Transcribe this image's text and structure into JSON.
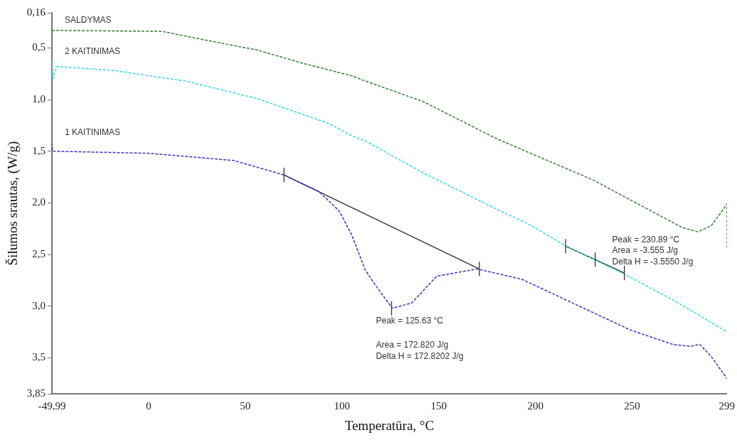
{
  "chart_data": {
    "type": "line",
    "xlabel": "Temperatūra, °C",
    "ylabel": "Šilumos srautas, (W/g)",
    "xlim": [
      -49.99,
      299
    ],
    "ylim": [
      3.85,
      0.16
    ],
    "xticks": [
      {
        "value": -49.99,
        "label": "-49,99"
      },
      0,
      50,
      100,
      150,
      200,
      250,
      299
    ],
    "yticks": [
      {
        "value": 0.16,
        "label": "0,16"
      },
      {
        "value": 0.5,
        "label": "0,5"
      },
      {
        "value": 1.0,
        "label": "1,0"
      },
      {
        "value": 1.5,
        "label": "1,5"
      },
      {
        "value": 2.0,
        "label": "2,0"
      },
      {
        "value": 2.5,
        "label": "2,5"
      },
      {
        "value": 3.0,
        "label": "3,0"
      },
      {
        "value": 3.5,
        "label": "3,5"
      },
      {
        "value": 3.85,
        "label": "3,85"
      }
    ],
    "grid": false,
    "legend": false,
    "line_style": "dashed",
    "marker": "none",
    "series": [
      {
        "name": "SALDYMAS",
        "color": "#3b7d3b",
        "x": [
          -49.99,
          7,
          31,
          56,
          80,
          105,
          112,
          142,
          180,
          230,
          268,
          276,
          284,
          291,
          296.5,
          299,
          299
        ],
        "values": [
          0.33,
          0.34,
          0.43,
          0.52,
          0.65,
          0.77,
          0.82,
          1.02,
          1.38,
          1.78,
          2.16,
          2.24,
          2.28,
          2.22,
          2.08,
          2.01,
          2.44
        ]
      },
      {
        "name": "2 KAITINIMAS",
        "color": "#3fd6dc",
        "x": [
          -49.99,
          -49.6,
          -47.5,
          -17,
          0,
          19,
          56,
          93,
          105,
          112,
          142,
          182,
          196,
          215,
          246,
          274,
          299
        ],
        "values": [
          0.63,
          0.8,
          0.68,
          0.72,
          0.77,
          0.82,
          0.99,
          1.23,
          1.35,
          1.4,
          1.71,
          2.08,
          2.2,
          2.41,
          2.69,
          2.97,
          3.25
        ]
      },
      {
        "name": "1 KAITINIMAS",
        "color": "#3a36c4",
        "x": [
          -49.99,
          -49.6,
          0,
          44,
          70,
          88,
          98.6,
          105,
          112,
          117,
          126,
          136,
          149,
          170,
          193,
          217,
          249,
          271,
          280,
          285,
          291,
          299
        ],
        "values": [
          1.42,
          1.5,
          1.52,
          1.59,
          1.73,
          1.89,
          2.08,
          2.31,
          2.65,
          2.79,
          3.02,
          2.97,
          2.71,
          2.64,
          2.74,
          2.95,
          3.23,
          3.37,
          3.39,
          3.37,
          3.49,
          3.7
        ]
      },
      {
        "color": "#333333",
        "line_style": "solid",
        "x": [
          70,
          171
        ],
        "values": [
          1.73,
          2.64
        ],
        "errors": [
          0.07,
          0.07
        ]
      },
      {
        "color": "#333333",
        "line_style": "solid",
        "x": [
          215.6,
          230.89,
          246
        ],
        "values": [
          2.42,
          2.55,
          2.68
        ],
        "errors": [
          0.07,
          0.07,
          0.07
        ]
      }
    ],
    "annotations": [
      {
        "text": "Peak = 125.63 °C",
        "x": 125.63,
        "y": 3.02
      },
      "Area = 172.820 J/g",
      "Delta H = 172.8202 J/g",
      {
        "text": "Peak = 230.89 °C",
        "x": 230.89,
        "y": 2.55
      },
      "Area = -3.555 J/g",
      "Delta H = -3.5550 J/g"
    ]
  }
}
